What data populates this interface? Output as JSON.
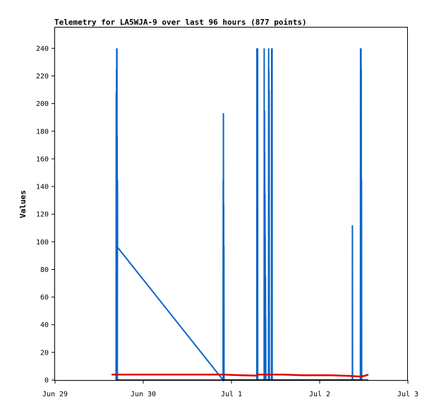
{
  "chart_data": {
    "type": "line",
    "title": "Telemetry for LA5WJA-9 over last 96 hours (877 points)",
    "xlabel": "",
    "ylabel": "Values",
    "xlim": [
      "2024-06-29T00:00",
      "2024-07-03T00:00"
    ],
    "ylim": [
      0,
      255
    ],
    "x_ticks": [
      {
        "date": "2024-06-29T00:00",
        "label": "Jun 29"
      },
      {
        "date": "2024-06-30T00:00",
        "label": "Jun 30"
      },
      {
        "date": "2024-07-01T00:00",
        "label": "Jul 1"
      },
      {
        "date": "2024-07-02T00:00",
        "label": "Jul 2"
      },
      {
        "date": "2024-07-03T00:00",
        "label": "Jul 3"
      }
    ],
    "y_ticks": [
      0,
      20,
      40,
      60,
      80,
      100,
      120,
      140,
      160,
      180,
      200,
      220,
      240
    ],
    "grid": false,
    "legend": "none",
    "series": [
      {
        "color": "#0a64c8",
        "points": [
          [
            "2024-06-29T16:37",
            0
          ],
          [
            "2024-06-29T16:39",
            208
          ],
          [
            "2024-06-29T16:41",
            0
          ],
          [
            "2024-06-29T16:43",
            225
          ],
          [
            "2024-06-29T16:45",
            0
          ],
          [
            "2024-06-29T16:47",
            240
          ],
          [
            "2024-06-29T16:49",
            0
          ],
          [
            "2024-06-29T16:51",
            240
          ],
          [
            "2024-06-29T16:53",
            0
          ],
          [
            "2024-06-29T16:55",
            177
          ],
          [
            "2024-06-29T16:57",
            0
          ],
          [
            "2024-06-29T16:59",
            145
          ],
          [
            "2024-06-29T17:01",
            96
          ],
          [
            "2024-06-30T21:43",
            0
          ],
          [
            "2024-06-30T21:45",
            145
          ],
          [
            "2024-06-30T21:47",
            0
          ],
          [
            "2024-06-30T21:49",
            193
          ],
          [
            "2024-06-30T21:51",
            0
          ],
          [
            "2024-06-30T21:53",
            128
          ],
          [
            "2024-06-30T21:55",
            0
          ],
          [
            "2024-06-30T21:57",
            97
          ],
          [
            "2024-06-30T21:59",
            0
          ],
          [
            "2024-07-01T06:53",
            0
          ],
          [
            "2024-07-01T06:55",
            240
          ],
          [
            "2024-07-01T06:57",
            0
          ],
          [
            "2024-07-01T06:59",
            240
          ],
          [
            "2024-07-01T07:01",
            0
          ],
          [
            "2024-07-01T07:03",
            240
          ],
          [
            "2024-07-01T07:05",
            0
          ],
          [
            "2024-07-01T07:07",
            240
          ],
          [
            "2024-07-01T07:09",
            0
          ],
          [
            "2024-07-01T08:53",
            0
          ],
          [
            "2024-07-01T08:55",
            240
          ],
          [
            "2024-07-01T08:57",
            0
          ],
          [
            "2024-07-01T08:59",
            195
          ],
          [
            "2024-07-01T09:01",
            0
          ],
          [
            "2024-07-01T09:03",
            165
          ],
          [
            "2024-07-01T09:05",
            0
          ],
          [
            "2024-07-01T09:07",
            135
          ],
          [
            "2024-07-01T09:09",
            0
          ],
          [
            "2024-07-01T09:11",
            105
          ],
          [
            "2024-07-01T09:13",
            0
          ],
          [
            "2024-07-01T09:15",
            75
          ],
          [
            "2024-07-01T09:17",
            0
          ],
          [
            "2024-07-01T09:19",
            45
          ],
          [
            "2024-07-01T09:21",
            0
          ],
          [
            "2024-07-01T10:05",
            0
          ],
          [
            "2024-07-01T10:07",
            240
          ],
          [
            "2024-07-01T10:09",
            0
          ],
          [
            "2024-07-01T10:11",
            225
          ],
          [
            "2024-07-01T10:13",
            0
          ],
          [
            "2024-07-01T10:15",
            210
          ],
          [
            "2024-07-01T10:17",
            0
          ],
          [
            "2024-07-01T10:53",
            0
          ],
          [
            "2024-07-01T10:55",
            240
          ],
          [
            "2024-07-01T10:57",
            0
          ],
          [
            "2024-07-01T10:59",
            240
          ],
          [
            "2024-07-01T11:01",
            0
          ],
          [
            "2024-07-01T11:03",
            240
          ],
          [
            "2024-07-01T11:05",
            0
          ],
          [
            "2024-07-02T08:53",
            0
          ],
          [
            "2024-07-02T08:55",
            112
          ],
          [
            "2024-07-02T08:57",
            0
          ],
          [
            "2024-07-02T11:05",
            0
          ],
          [
            "2024-07-02T11:07",
            240
          ],
          [
            "2024-07-02T11:09",
            0
          ],
          [
            "2024-07-02T11:11",
            208
          ],
          [
            "2024-07-02T11:13",
            0
          ],
          [
            "2024-07-02T11:15",
            240
          ],
          [
            "2024-07-02T11:17",
            0
          ],
          [
            "2024-07-02T11:19",
            225
          ],
          [
            "2024-07-02T11:21",
            0
          ],
          [
            "2024-07-02T11:23",
            145
          ],
          [
            "2024-07-02T11:25",
            0
          ]
        ]
      },
      {
        "color": "#e00000",
        "points": [
          [
            "2024-06-29T15:23",
            4
          ],
          [
            "2024-06-30T21:30",
            4
          ],
          [
            "2024-07-01T03:00",
            3.5
          ],
          [
            "2024-07-01T06:45",
            3.2
          ],
          [
            "2024-07-01T07:15",
            4
          ],
          [
            "2024-07-01T14:00",
            4
          ],
          [
            "2024-07-01T19:30",
            3.5
          ],
          [
            "2024-07-02T03:00",
            3.5
          ],
          [
            "2024-07-02T08:00",
            3
          ],
          [
            "2024-07-02T11:00",
            2.5
          ],
          [
            "2024-07-02T12:10",
            3
          ],
          [
            "2024-07-02T13:15",
            4
          ]
        ]
      },
      {
        "color": "#000000",
        "points": [
          [
            "2024-06-29T16:37",
            0
          ],
          [
            "2024-07-02T13:15",
            0
          ]
        ]
      }
    ]
  }
}
